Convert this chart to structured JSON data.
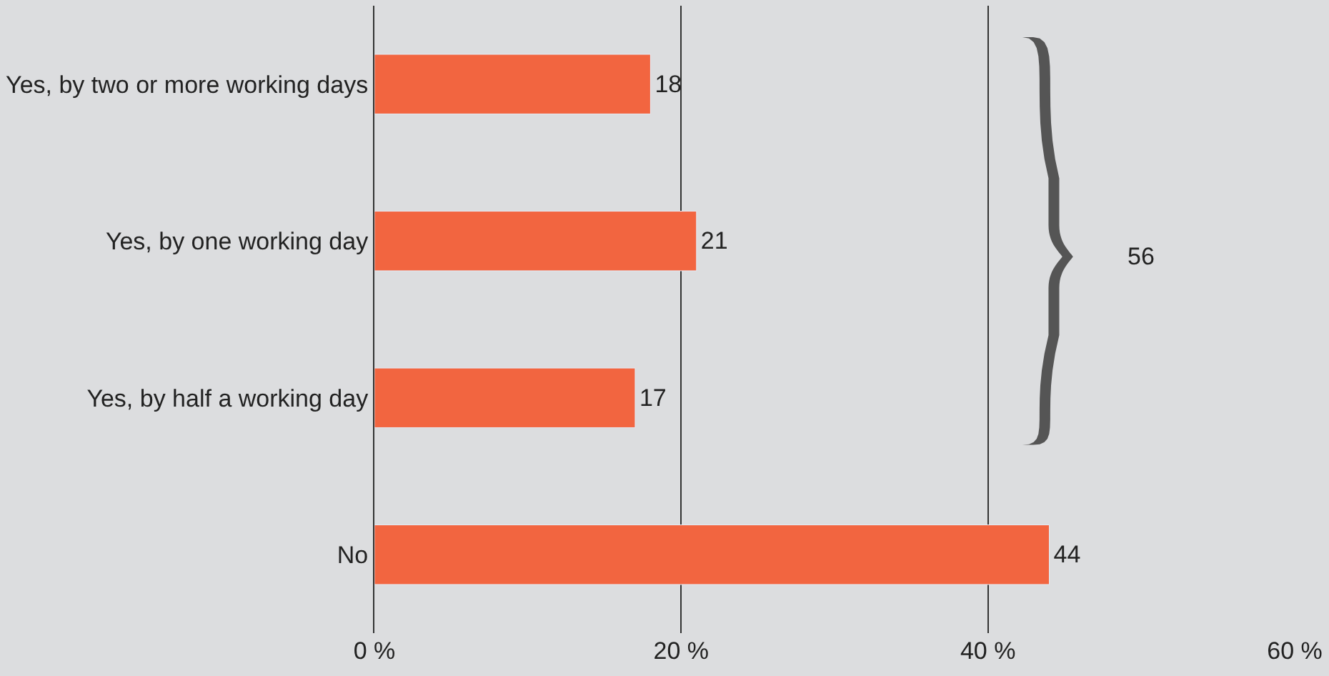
{
  "chart_data": {
    "type": "bar",
    "orientation": "horizontal",
    "categories": [
      "Yes, by two or more working days",
      "Yes, by one working day",
      "Yes, by half a working day",
      "No"
    ],
    "values": [
      18,
      21,
      17,
      44
    ],
    "color": "#f26540",
    "xlim": [
      0,
      60
    ],
    "xticks": [
      {
        "value": 0,
        "label": "0 %"
      },
      {
        "value": 20,
        "label": "20 %"
      },
      {
        "value": 40,
        "label": "40 %"
      },
      {
        "value": 60,
        "label": "60 %"
      }
    ],
    "grid": "x",
    "data_labels": true,
    "annotations": [
      "56"
    ]
  }
}
